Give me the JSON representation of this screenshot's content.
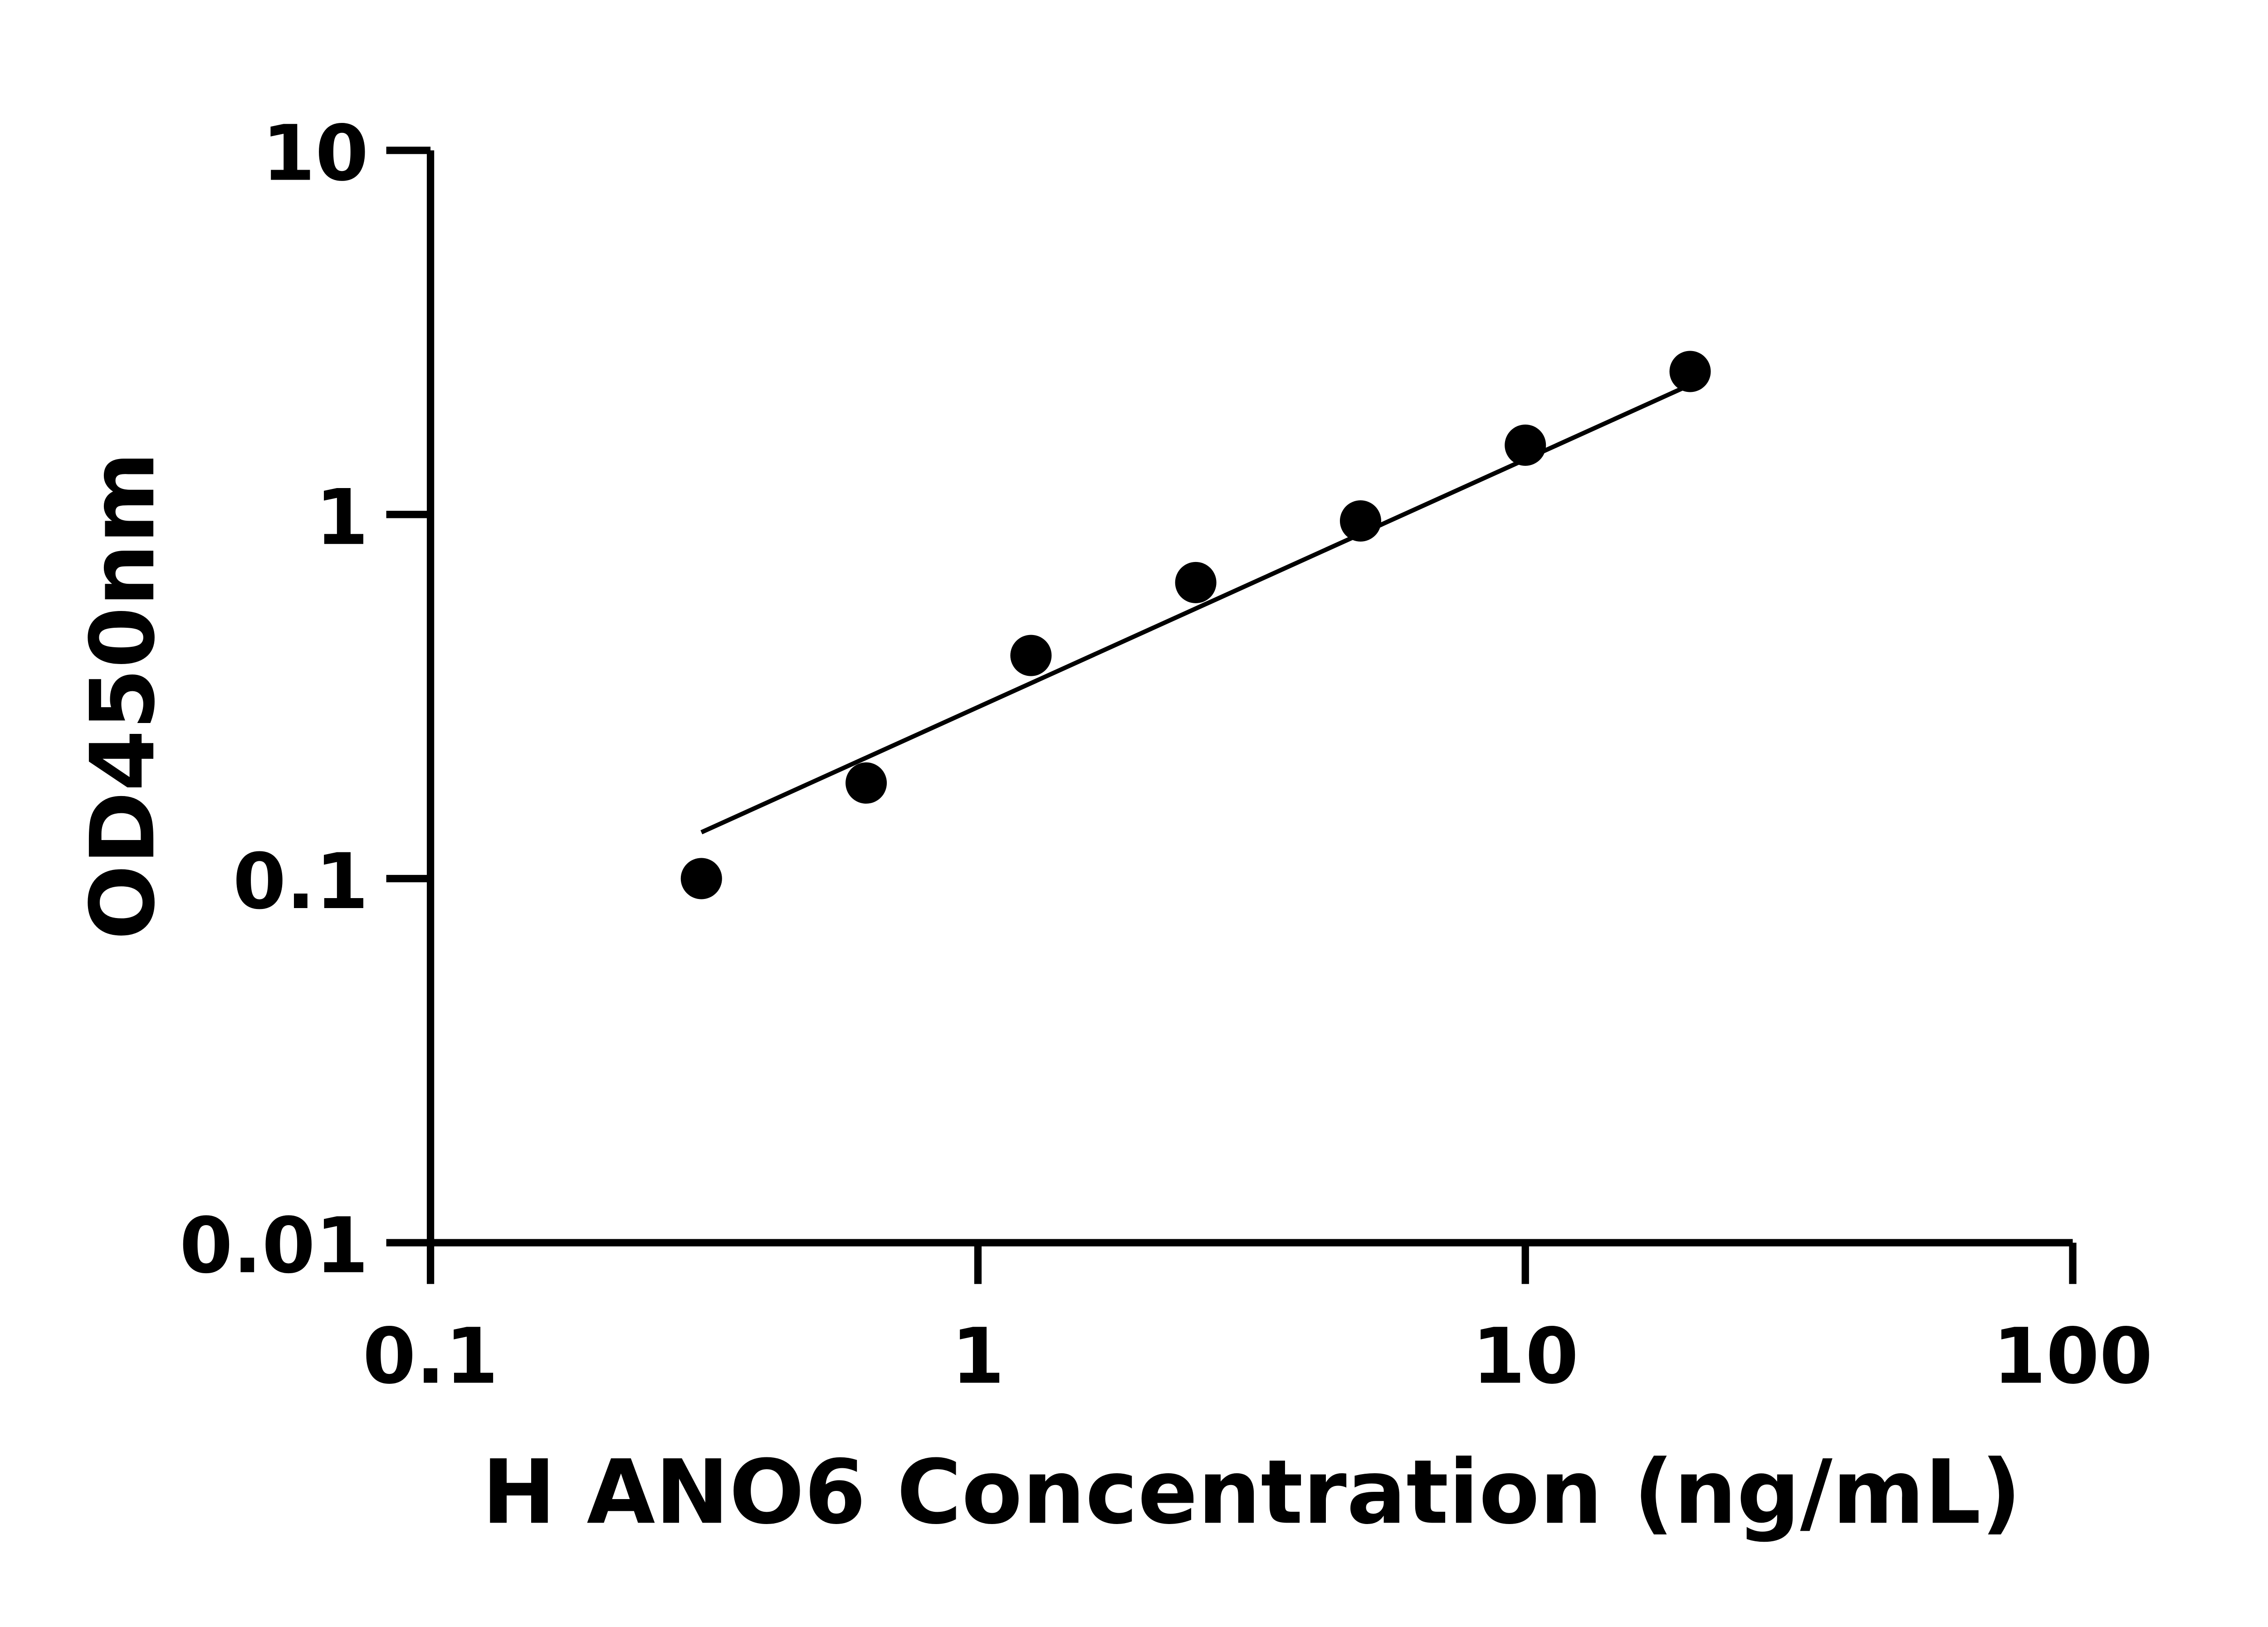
{
  "chart_data": {
    "type": "scatter",
    "title": "",
    "xlabel": "H ANO6 Concentration (ng/mL)",
    "ylabel": "OD450nm",
    "xscale": "log",
    "yscale": "log",
    "xlim": [
      0.1,
      100
    ],
    "ylim": [
      0.01,
      10
    ],
    "xticks": [
      {
        "v": 0.1,
        "label": "0.1"
      },
      {
        "v": 1,
        "label": "1"
      },
      {
        "v": 10,
        "label": "10"
      },
      {
        "v": 100,
        "label": "100"
      }
    ],
    "yticks": [
      {
        "v": 0.01,
        "label": "0.01"
      },
      {
        "v": 0.1,
        "label": "0.1"
      },
      {
        "v": 1,
        "label": "1"
      },
      {
        "v": 10,
        "label": "10"
      }
    ],
    "grid": false,
    "points": {
      "x": [
        0.3125,
        0.625,
        1.25,
        2.5,
        5,
        10,
        20
      ],
      "y": [
        0.1,
        0.183,
        0.41,
        0.65,
        0.96,
        1.55,
        2.47
      ]
    },
    "fit_line": {
      "x": [
        0.3125,
        20
      ],
      "y": [
        0.134,
        2.27
      ]
    },
    "colors": {
      "points": "#000000",
      "line": "#000000"
    }
  }
}
